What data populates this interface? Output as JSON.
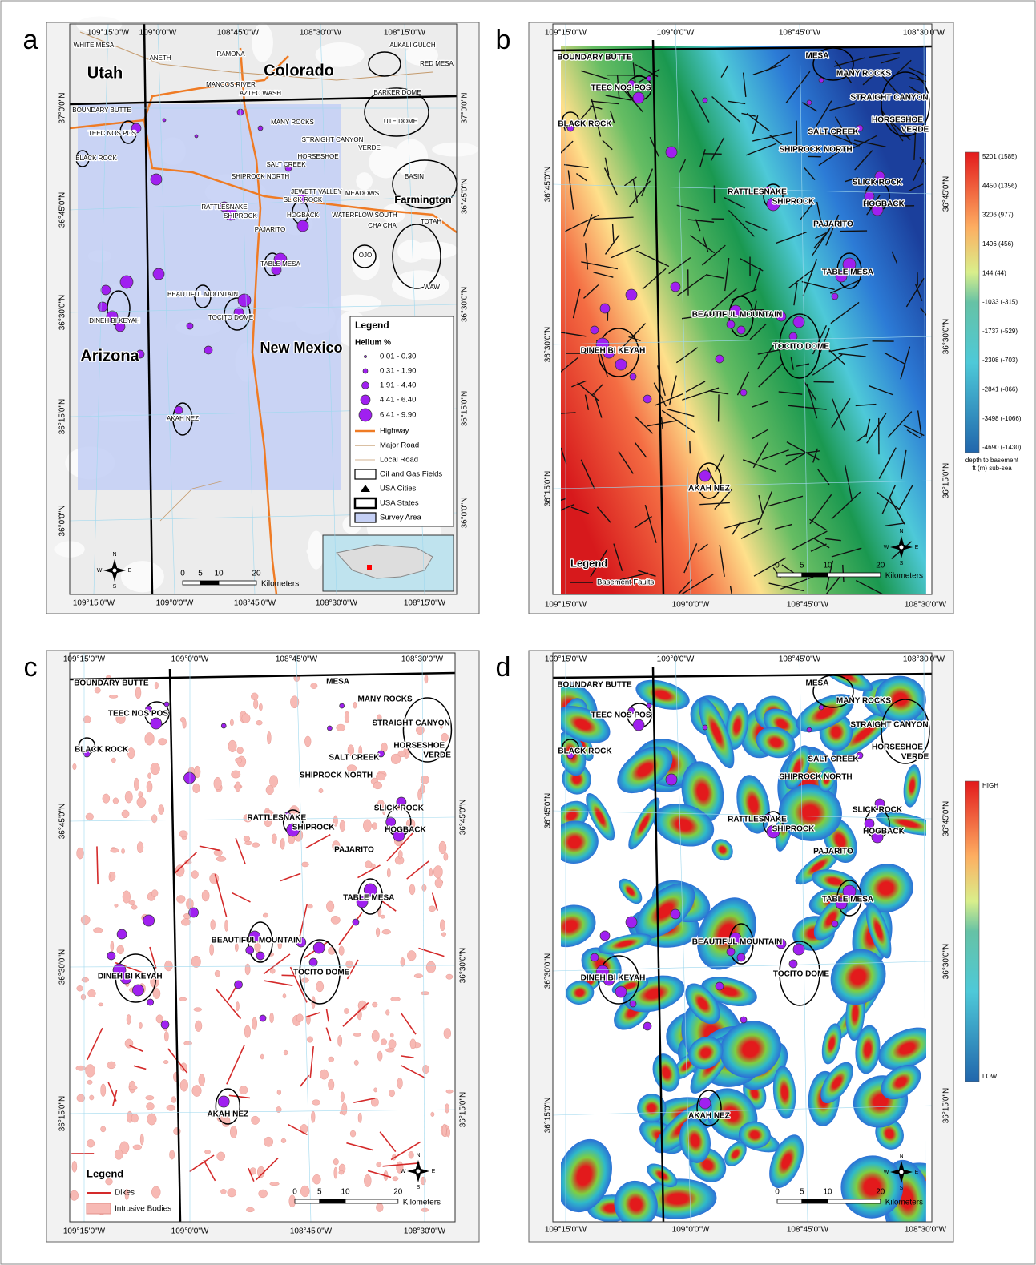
{
  "panels": [
    {
      "label": "a",
      "lon_top": [
        "109°15'0\"W",
        "109°0'0\"W",
        "108°45'0\"W",
        "108°30'0\"W",
        "108°15'0\"W"
      ],
      "lon_bottom": [
        "109°15'0\"W",
        "109°0'0\"W",
        "108°45'0\"W",
        "108°30'0\"W",
        "108°15'0\"W"
      ],
      "lat_left": [
        "37°0'0\"N",
        "36°45'0\"N",
        "36°30'0\"N",
        "36°15'0\"N",
        "36°0'0\"N"
      ],
      "lat_right": [
        "37°0'0\"N",
        "36°45'0\"N",
        "36°30'0\"N",
        "36°15'0\"N",
        "36°0'0\"N"
      ],
      "regions": [
        "Utah",
        "Colorado",
        "Arizona",
        "New Mexico",
        "Farmington"
      ],
      "places": [
        "WHITE MESA",
        "ALKALI GULCH",
        "RED MESA",
        "ANETH",
        "RAMONA",
        "MANCOS RIVER",
        "AZTEC WASH",
        "BARKER DOME",
        "BOUNDARY BUTTE",
        "TEEC NOS POS",
        "UTE DOME",
        "MANY ROCKS",
        "STRAIGHT CANYON",
        "VERDE",
        "BLACK ROCK",
        "HORSESHOE",
        "SALT CREEK",
        "SHIPROCK NORTH",
        "BASIN",
        "JEWETT VALLEY",
        "MEADOWS",
        "SLICK ROCK",
        "RATTLESNAKE",
        "SHIPROCK",
        "HOGBACK",
        "WATERFLOW SOUTH",
        "CHA CHA",
        "TOTAH",
        "PAJARITO",
        "OJO",
        "TABLE MESA",
        "WAW",
        "BEAUTIFUL MOUNTAIN",
        "TOCITO DOME",
        "DINEH BI KEYAH",
        "AKAH NEZ"
      ],
      "legend": {
        "title": "Legend",
        "subtitle": "Helium %",
        "items": [
          "0.01 - 0.30",
          "0.31 - 1.90",
          "1.91 - 4.40",
          "4.41 - 6.40",
          "6.41 - 9.90",
          "Highway",
          "Major Road",
          "Local Road",
          "Oil and Gas Fields",
          "USA Cities",
          "USA States",
          "Survey Area"
        ]
      },
      "scale": {
        "ticks": [
          0,
          5,
          10,
          20
        ],
        "unit": "Kilometers"
      },
      "compass": [
        "N",
        "E",
        "S",
        "W"
      ]
    },
    {
      "label": "b",
      "lon_top": [
        "109°15'0\"W",
        "109°0'0\"W",
        "108°45'0\"W",
        "108°30'0\"W"
      ],
      "lon_bottom": [
        "109°15'0\"W",
        "109°0'0\"W",
        "108°45'0\"W",
        "108°30'0\"W"
      ],
      "lat_left": [
        "36°45'0\"N",
        "36°30'0\"N",
        "36°15'0\"N"
      ],
      "lat_right": [
        "36°45'0\"N",
        "36°30'0\"N",
        "36°15'0\"N"
      ],
      "places": [
        "BOUNDARY BUTTE",
        "TEEC NOS POS",
        "BLACK ROCK",
        "MESA",
        "MANY ROCKS",
        "STRAIGHT CANYON",
        "HORSESHOE",
        "VERDE",
        "SALT CREEK",
        "SHIPROCK NORTH",
        "SLICK ROCK",
        "RATTLESNAKE",
        "SHIPROCK",
        "HOGBACK",
        "PAJARITO",
        "TABLE MESA",
        "BEAUTIFUL MOUNTAIN",
        "DINEH BI KEYAH",
        "TOCITO DOME",
        "AKAH NEZ"
      ],
      "legend": {
        "title": "Legend",
        "items": [
          "Basement Faults"
        ]
      },
      "colorbar": {
        "labels": [
          "5201 (1585)",
          "4450 (1356)",
          "3206 (977)",
          "1496 (456)",
          "144 (44)",
          "-1033 (-315)",
          "-1737 (-529)",
          "-2308 (-703)",
          "-2841 (-866)",
          "-3498 (-1066)",
          "-4690 (-1430)"
        ],
        "caption": [
          "depth to basement",
          "ft (m) sub-sea"
        ]
      },
      "scale": {
        "ticks": [
          0,
          5,
          10,
          20
        ],
        "unit": "Kilometers"
      },
      "compass": [
        "N",
        "E",
        "S",
        "W"
      ]
    },
    {
      "label": "c",
      "lon_top": [
        "109°15'0\"W",
        "109°0'0\"W",
        "108°45'0\"W",
        "108°30'0\"W"
      ],
      "lon_bottom": [
        "109°15'0\"W",
        "109°0'0\"W",
        "108°45'0\"W",
        "108°30'0\"W"
      ],
      "lat_left": [
        "36°45'0\"N",
        "36°30'0\"N",
        "36°15'0\"N"
      ],
      "lat_right": [
        "36°45'0\"N",
        "36°30'0\"N",
        "36°15'0\"N"
      ],
      "places": [
        "BOUNDARY BUTTE",
        "TEEC NOS POS",
        "BLACK ROCK",
        "MESA",
        "MANY ROCKS",
        "STRAIGHT CANYON",
        "HORSESHOE",
        "VERDE",
        "SALT CREEK",
        "SHIPROCK NORTH",
        "SLICK ROCK",
        "RATTLESNAKE",
        "SHIPROCK",
        "HOGBACK",
        "PAJARITO",
        "TABLE MESA",
        "BEAUTIFUL MOUNTAIN",
        "DINEH BI KEYAH",
        "TOCITO DOME",
        "AKAH NEZ"
      ],
      "legend": {
        "title": "Legend",
        "items": [
          "Dikes",
          "Intrusive Bodies"
        ]
      },
      "scale": {
        "ticks": [
          0,
          5,
          10,
          20
        ],
        "unit": "Kilometers"
      },
      "compass": [
        "N",
        "E",
        "S",
        "W"
      ]
    },
    {
      "label": "d",
      "lon_top": [
        "109°15'0\"W",
        "109°0'0\"W",
        "108°45'0\"W",
        "108°30'0\"W"
      ],
      "lon_bottom": [
        "109°15'0\"W",
        "109°0'0\"W",
        "108°45'0\"W",
        "108°30'0\"W"
      ],
      "lat_left": [
        "36°45'0\"N",
        "36°30'0\"N",
        "36°15'0\"N"
      ],
      "lat_right": [
        "36°45'0\"N",
        "36°30'0\"N",
        "36°15'0\"N"
      ],
      "places": [
        "BOUNDARY BUTTE",
        "TEEC NOS POS",
        "BLACK ROCK",
        "MESA",
        "MANY ROCKS",
        "STRAIGHT CANYON",
        "HORSESHOE",
        "VERDE",
        "SALT CREEK",
        "SHIPROCK NORTH",
        "SLICK ROCK",
        "RATTLESNAKE",
        "SHIPROCK",
        "HOGBACK",
        "PAJARITO",
        "TABLE MESA",
        "BEAUTIFUL MOUNTAIN",
        "DINEH BI KEYAH",
        "TOCITO DOME",
        "AKAH NEZ"
      ],
      "colorbar": {
        "labels": [
          "HIGH",
          "LOW"
        ]
      },
      "scale": {
        "ticks": [
          0,
          5,
          10,
          20
        ],
        "unit": "Kilometers"
      },
      "compass": [
        "N",
        "E",
        "S",
        "W"
      ]
    }
  ]
}
